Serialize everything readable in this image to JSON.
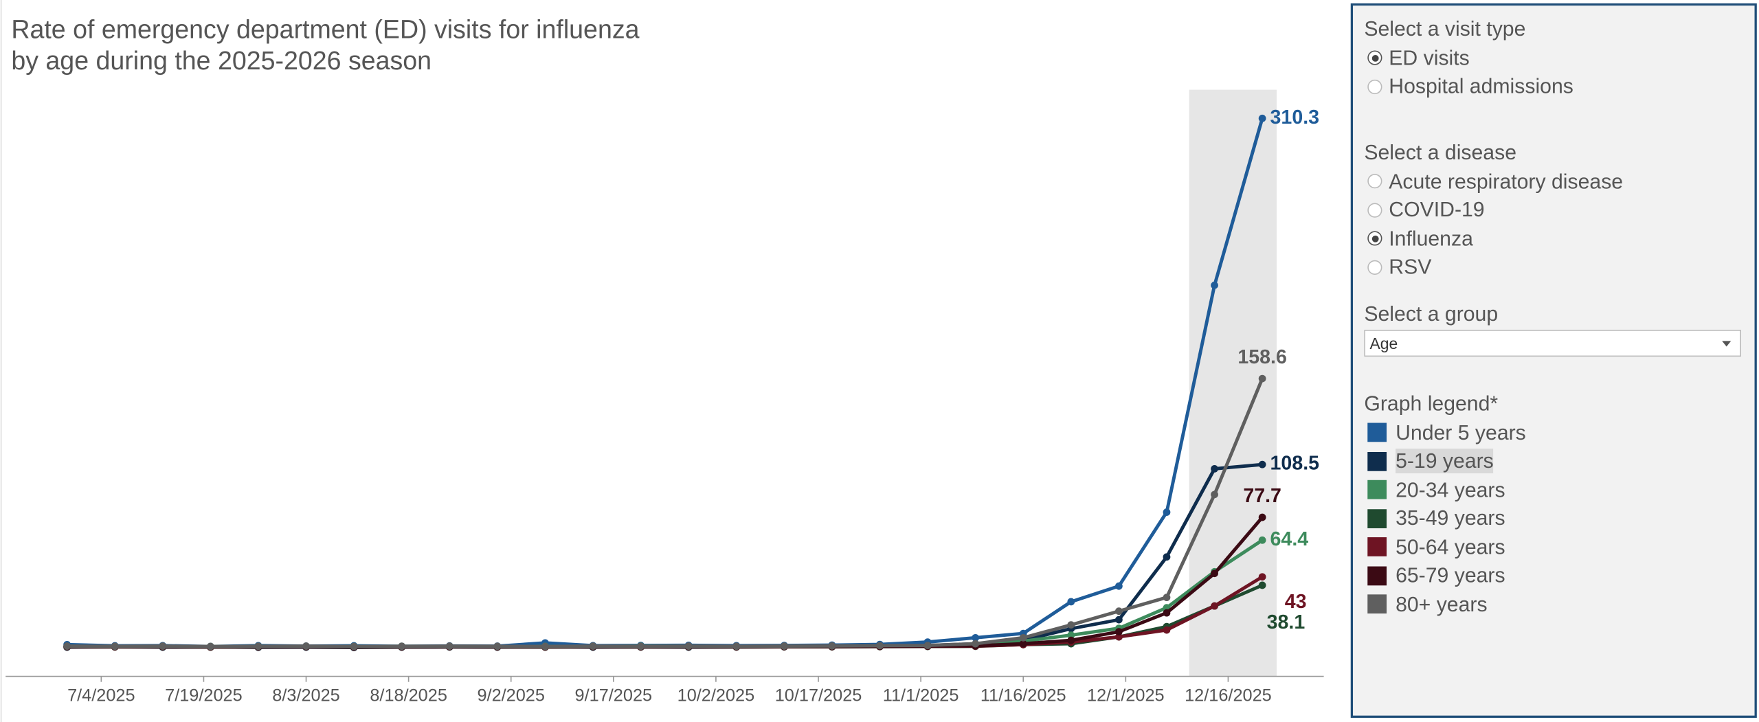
{
  "chart_data": {
    "type": "line",
    "title": "Rate of emergency department (ED) visits for influenza",
    "subtitle": "by age during the 2025-2026 season",
    "x": [
      "2025-06-29",
      "2025-07-06",
      "2025-07-13",
      "2025-07-20",
      "2025-07-27",
      "2025-08-03",
      "2025-08-10",
      "2025-08-17",
      "2025-08-24",
      "2025-08-31",
      "2025-09-07",
      "2025-09-14",
      "2025-09-21",
      "2025-09-28",
      "2025-10-05",
      "2025-10-12",
      "2025-10-19",
      "2025-10-26",
      "2025-11-02",
      "2025-11-09",
      "2025-11-16",
      "2025-11-23",
      "2025-11-30",
      "2025-12-07",
      "2025-12-14",
      "2025-12-21"
    ],
    "xlim": [
      "2025-06-20",
      "2025-12-30"
    ],
    "xticks": [
      {
        "value": "2025-07-04",
        "label": "7/4/2025"
      },
      {
        "value": "2025-07-19",
        "label": "7/19/2025"
      },
      {
        "value": "2025-08-03",
        "label": "8/3/2025"
      },
      {
        "value": "2025-08-18",
        "label": "8/18/2025"
      },
      {
        "value": "2025-09-02",
        "label": "9/2/2025"
      },
      {
        "value": "2025-09-17",
        "label": "9/17/2025"
      },
      {
        "value": "2025-10-02",
        "label": "10/2/2025"
      },
      {
        "value": "2025-10-17",
        "label": "10/17/2025"
      },
      {
        "value": "2025-11-01",
        "label": "11/1/2025"
      },
      {
        "value": "2025-11-16",
        "label": "11/16/2025"
      },
      {
        "value": "2025-12-01",
        "label": "12/1/2025"
      },
      {
        "value": "2025-12-16",
        "label": "12/16/2025"
      }
    ],
    "ylim": [
      -15,
      327
    ],
    "legend_title": "Graph legend*",
    "series": [
      {
        "name": "Under 5 years",
        "color": "#1f5c99",
        "values": [
          3.5,
          2.8,
          2.9,
          2.4,
          2.9,
          2.6,
          2.8,
          2.5,
          2.7,
          2.6,
          4.5,
          2.9,
          3.0,
          3.1,
          2.9,
          3.0,
          3.2,
          3.6,
          5.0,
          7.5,
          10.0,
          28.5,
          37.6,
          80.7,
          213.0,
          310.3
        ]
      },
      {
        "name": "5-19 years",
        "color": "#0f2d4d",
        "values": [
          2.0,
          2.2,
          2.0,
          2.1,
          1.9,
          2.0,
          1.8,
          2.0,
          2.1,
          2.0,
          2.2,
          2.0,
          2.1,
          2.0,
          2.1,
          2.2,
          2.3,
          2.6,
          3.0,
          4.0,
          6.0,
          12.8,
          18.0,
          54.6,
          106.0,
          108.5
        ]
      },
      {
        "name": "20-34 years",
        "color": "#3d8b5c",
        "values": [
          2.5,
          2.4,
          2.3,
          2.4,
          2.5,
          2.3,
          2.4,
          2.5,
          2.4,
          2.3,
          2.5,
          2.4,
          2.6,
          2.5,
          2.4,
          2.5,
          2.6,
          2.7,
          2.8,
          3.0,
          5.5,
          9.0,
          13.0,
          25.0,
          46.0,
          64.4
        ]
      },
      {
        "name": "35-49 years",
        "color": "#1f4a2f",
        "values": [
          2.2,
          2.1,
          2.2,
          2.0,
          2.1,
          2.2,
          2.0,
          2.1,
          2.2,
          2.1,
          2.0,
          2.2,
          2.1,
          2.2,
          2.1,
          2.2,
          2.2,
          2.3,
          2.4,
          2.5,
          3.5,
          4.0,
          8.0,
          14.0,
          26.0,
          38.1
        ]
      },
      {
        "name": "50-64 years",
        "color": "#6e1423",
        "values": [
          2.3,
          2.2,
          2.3,
          2.1,
          2.2,
          2.3,
          2.1,
          2.2,
          2.3,
          2.2,
          2.1,
          2.3,
          2.2,
          2.3,
          2.2,
          2.3,
          2.3,
          2.4,
          2.5,
          2.6,
          3.5,
          5.0,
          8.0,
          12.0,
          26.0,
          43.0
        ]
      },
      {
        "name": "65-79 years",
        "color": "#3b0a14",
        "values": [
          2.4,
          2.3,
          2.4,
          2.2,
          2.3,
          2.4,
          2.2,
          2.3,
          2.4,
          2.3,
          2.2,
          2.4,
          2.3,
          2.4,
          2.3,
          2.4,
          2.4,
          2.5,
          2.6,
          2.8,
          4.0,
          6.0,
          11.0,
          22.0,
          45.0,
          77.7
        ]
      },
      {
        "name": "80+ years",
        "color": "#5f5f5f",
        "values": [
          2.6,
          2.5,
          2.6,
          2.4,
          2.5,
          2.6,
          2.4,
          2.5,
          2.6,
          2.5,
          2.4,
          2.6,
          2.5,
          2.6,
          2.5,
          2.6,
          2.7,
          2.9,
          3.0,
          4.0,
          7.5,
          15.0,
          23.0,
          31.0,
          91.0,
          158.6
        ]
      }
    ]
  },
  "controls": {
    "visit_type": {
      "label": "Select a visit type",
      "options": [
        "ED visits",
        "Hospital admissions"
      ],
      "selected": 0
    },
    "disease": {
      "label": "Select a disease",
      "options": [
        "Acute respiratory disease",
        "COVID-19",
        "Influenza",
        "RSV"
      ],
      "selected": 2
    },
    "group": {
      "label": "Select a group",
      "value": "Age"
    }
  }
}
